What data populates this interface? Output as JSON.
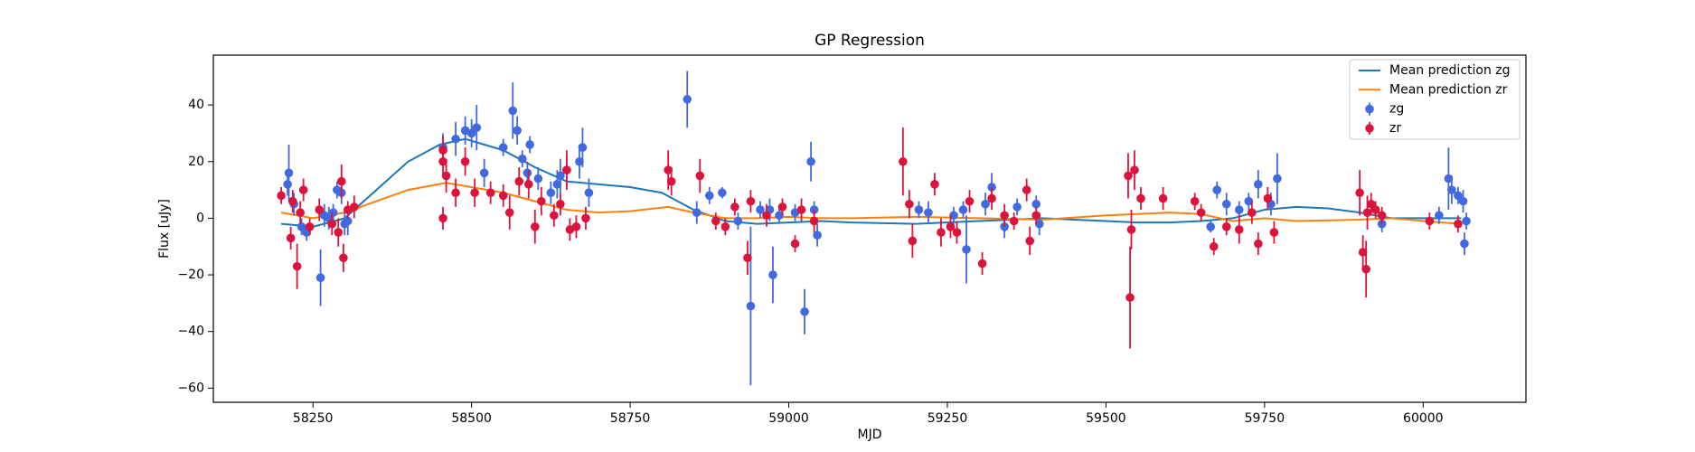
{
  "chart_data": {
    "type": "scatter",
    "title": "GP Regression",
    "x_label": "MJD",
    "y_label": "Flux [uJy]",
    "xlim": [
      58093,
      60162
    ],
    "ylim": [
      -65,
      57.6
    ],
    "xticks": [
      58250,
      58500,
      58750,
      59000,
      59250,
      59500,
      59750,
      60000
    ],
    "yticks": [
      {
        "value": -60,
        "label": "−60"
      },
      {
        "value": -40,
        "label": "−40"
      },
      {
        "value": -20,
        "label": "−20"
      },
      0,
      20,
      40
    ],
    "legend": "upper right",
    "series": [
      {
        "name": "Mean prediction zg",
        "type": "line",
        "color": "#1f77b4",
        "x": [
          58200,
          58250,
          58300,
          58350,
          58400,
          58450,
          58490,
          58550,
          58600,
          58650,
          58700,
          58750,
          58800,
          58850,
          58900,
          58950,
          59000,
          59050,
          59100,
          59200,
          59300,
          59400,
          59450,
          59500,
          59550,
          59600,
          59650,
          59700,
          59750,
          59800,
          59850,
          59900,
          59950,
          60000,
          60060
        ],
        "values": [
          -2,
          -3,
          0,
          10,
          20,
          26,
          28,
          24,
          18,
          13,
          12,
          11,
          9,
          3,
          -1,
          -2,
          -1.5,
          -1,
          -1.5,
          -2,
          -1,
          0,
          -0.5,
          -1,
          -1.5,
          -1.5,
          -1,
          0,
          3,
          4,
          3.5,
          2,
          0,
          0,
          0
        ]
      },
      {
        "name": "Mean prediction zr",
        "type": "line",
        "color": "#ff7f0e",
        "x": [
          58200,
          58250,
          58300,
          58350,
          58400,
          58460,
          58500,
          58550,
          58600,
          58650,
          58700,
          58750,
          58810,
          58850,
          58900,
          58950,
          59000,
          59050,
          59100,
          59200,
          59300,
          59400,
          59500,
          59550,
          59600,
          59650,
          59700,
          59750,
          59800,
          59900,
          59950,
          60000,
          60060
        ],
        "values": [
          2,
          0,
          2,
          6,
          10,
          12.5,
          11,
          9,
          6,
          3,
          2,
          2.5,
          4,
          2,
          0,
          0,
          0.5,
          0,
          0,
          0.5,
          0,
          -0.5,
          1,
          1.5,
          2,
          1.5,
          -1,
          0,
          -1,
          -0.5,
          0,
          -1,
          -2
        ]
      },
      {
        "name": "zg",
        "type": "errorbar",
        "color": "#4169e1",
        "x": [
          58210,
          58212,
          58220,
          58232,
          58240,
          58262,
          58268,
          58275,
          58282,
          58288,
          58295,
          58300,
          58305,
          58455,
          58475,
          58490,
          58500,
          58508,
          58520,
          58550,
          58565,
          58572,
          58580,
          58588,
          58592,
          58605,
          58625,
          58635,
          58640,
          58650,
          58670,
          58675,
          58685,
          58840,
          58855,
          58875,
          58895,
          58920,
          58940,
          58955,
          58970,
          58975,
          58985,
          59010,
          59025,
          59035,
          59040,
          59045,
          59205,
          59220,
          59260,
          59275,
          59280,
          59310,
          59320,
          59340,
          59360,
          59390,
          59395,
          59665,
          59675,
          59690,
          59710,
          59725,
          59740,
          59760,
          59770,
          59935,
          60025,
          60040,
          60045,
          60055,
          60063,
          60065,
          60068
        ],
        "values": [
          12,
          16,
          5,
          -3,
          -5,
          -21,
          1,
          0,
          2,
          10,
          9,
          -2,
          -1,
          25,
          28,
          31,
          30,
          32,
          16,
          25,
          38,
          31,
          21,
          16,
          26,
          14,
          9,
          12,
          15,
          17,
          20,
          25,
          9,
          42,
          2,
          8,
          9,
          -1,
          -31,
          3,
          3,
          -20,
          1,
          2,
          -33,
          20,
          3,
          -6,
          3,
          2,
          1,
          3,
          -11,
          5,
          11,
          -3,
          4,
          5,
          -2,
          -3,
          10,
          5,
          3,
          6,
          12,
          5,
          14,
          -2,
          1,
          14,
          10,
          8,
          6,
          -9,
          -1
        ],
        "errors": [
          4,
          10,
          4,
          3,
          3,
          10,
          4,
          4,
          3,
          3,
          4,
          4,
          5,
          5,
          6,
          5,
          5,
          8,
          5,
          3,
          10,
          5,
          3,
          4,
          3,
          4,
          4,
          5,
          6,
          5,
          6,
          7,
          5,
          10,
          4,
          3,
          2,
          3,
          28,
          3,
          4,
          10,
          3,
          3,
          8,
          7,
          3,
          4,
          3,
          4,
          3,
          3,
          12,
          4,
          5,
          4,
          3,
          3,
          4,
          2,
          3,
          4,
          3,
          3,
          5,
          4,
          9,
          3,
          3,
          11,
          5,
          3,
          4,
          4,
          3
        ]
      },
      {
        "name": "zr",
        "type": "errorbar",
        "color": "#dc143c",
        "x": [
          58200,
          58215,
          58218,
          58225,
          58230,
          58235,
          58245,
          58260,
          58280,
          58290,
          58295,
          58298,
          58305,
          58315,
          58455,
          58455,
          58455,
          58460,
          58475,
          58490,
          58505,
          58530,
          58550,
          58560,
          58575,
          58590,
          58600,
          58610,
          58630,
          58640,
          58650,
          58655,
          58665,
          58680,
          58810,
          58815,
          58860,
          58885,
          58900,
          58915,
          58935,
          58940,
          58965,
          58990,
          59010,
          59020,
          59040,
          59180,
          59190,
          59195,
          59230,
          59240,
          59255,
          59265,
          59285,
          59305,
          59320,
          59340,
          59355,
          59375,
          59380,
          59390,
          59535,
          59538,
          59540,
          59545,
          59555,
          59590,
          59640,
          59650,
          59670,
          59690,
          59710,
          59730,
          59740,
          59755,
          59765,
          59900,
          59905,
          59910,
          59912,
          59918,
          59925,
          59935,
          60010,
          60055
        ],
        "values": [
          8,
          -7,
          6,
          -17,
          2,
          10,
          -3,
          3,
          -2,
          -5,
          13,
          -14,
          3,
          4,
          0,
          20,
          24,
          15,
          9,
          20,
          9,
          9,
          8,
          2,
          13,
          12,
          -3,
          6,
          1,
          5,
          17,
          -4,
          -3,
          0,
          17,
          13,
          15,
          -1,
          -3,
          4,
          -14,
          6,
          1,
          4,
          -9,
          3,
          -1,
          20,
          5,
          -8,
          12,
          -5,
          -3,
          -5,
          6,
          -16,
          7,
          1,
          -1,
          10,
          -8,
          1,
          15,
          -28,
          -4,
          17,
          7,
          7,
          6,
          2,
          -10,
          -3,
          -4,
          2,
          -9,
          7,
          -5,
          9,
          -12,
          -18,
          2,
          5,
          3,
          1,
          -1,
          -2
        ],
        "errors": [
          3,
          4,
          4,
          8,
          4,
          4,
          3,
          4,
          4,
          5,
          6,
          5,
          3,
          4,
          4,
          5,
          5,
          6,
          5,
          5,
          5,
          4,
          4,
          6,
          5,
          5,
          6,
          5,
          4,
          4,
          7,
          4,
          4,
          4,
          7,
          5,
          6,
          3,
          3,
          3,
          6,
          4,
          4,
          3,
          3,
          4,
          4,
          12,
          5,
          6,
          4,
          5,
          4,
          4,
          4,
          4,
          4,
          4,
          3,
          4,
          5,
          3,
          8,
          18,
          7,
          7,
          4,
          4,
          3,
          3,
          3,
          3,
          5,
          4,
          4,
          4,
          4,
          8,
          6,
          10,
          6,
          4,
          3,
          3,
          3,
          3
        ]
      }
    ]
  }
}
